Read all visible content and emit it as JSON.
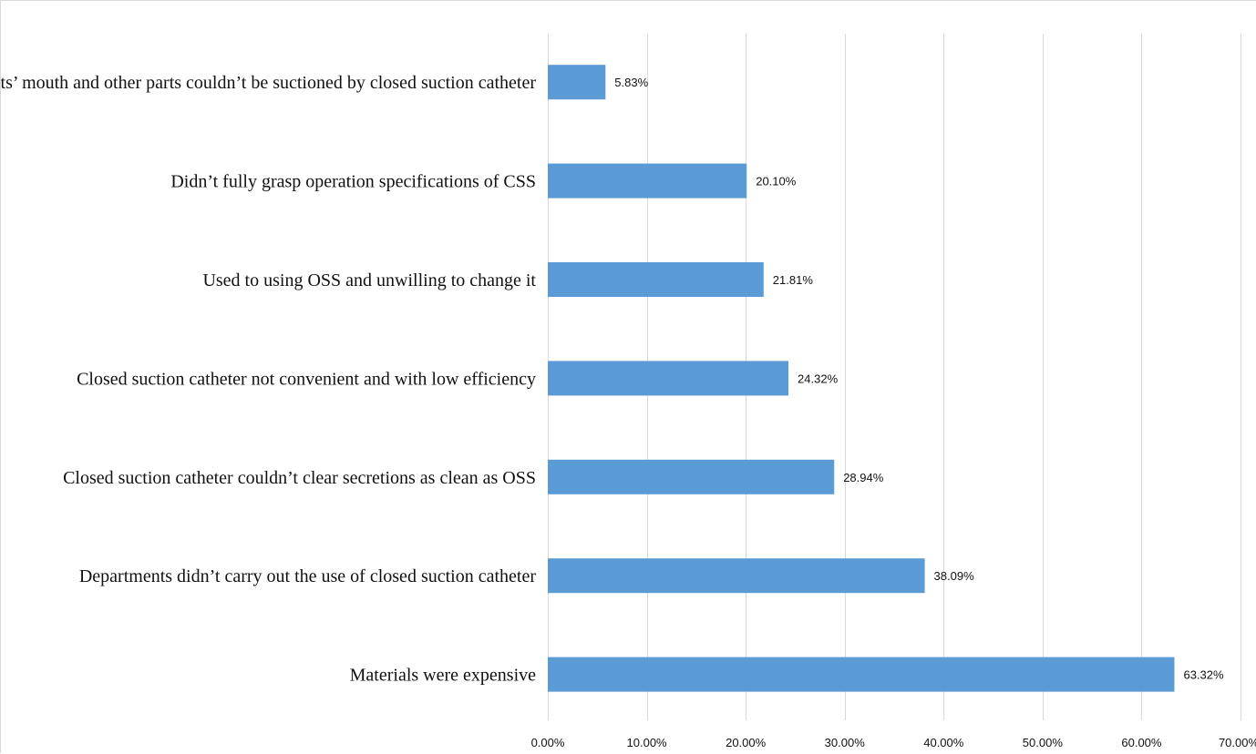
{
  "chart_data": {
    "type": "bar",
    "orientation": "horizontal",
    "title": "",
    "xlabel": "",
    "ylabel": "",
    "categories": [
      "Patients’ mouth and other parts couldn’t be suctioned by closed suction catheter",
      "Didn’t fully grasp operation specifications of CSS",
      "Used to using OSS and unwilling to change it",
      "Closed suction catheter not convenient and with low efficiency",
      "Closed suction catheter couldn’t clear secretions as clean as OSS",
      "Departments didn’t carry out the use of closed suction catheter",
      "Materials were expensive"
    ],
    "values": [
      5.83,
      20.1,
      21.81,
      24.32,
      28.94,
      38.09,
      63.32
    ],
    "data_labels": [
      "5.83%",
      "20.10%",
      "21.81%",
      "24.32%",
      "28.94%",
      "38.09%",
      "63.32%"
    ],
    "xlim": [
      0,
      70
    ],
    "ticks": [
      0,
      10,
      20,
      30,
      40,
      50,
      60,
      70
    ],
    "tick_labels": [
      "0.00%",
      "10.00%",
      "20.00%",
      "30.00%",
      "40.00%",
      "50.00%",
      "60.00%",
      "70.00%"
    ],
    "grid": true,
    "legend": "none",
    "colors": {
      "bar": "#5b9bd5",
      "grid": "#d9d9d9",
      "text": "#111111"
    }
  }
}
